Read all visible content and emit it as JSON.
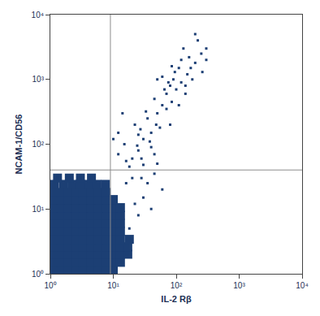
{
  "chart_data": {
    "type": "scatter",
    "xlabel": "IL-2 Rβ",
    "ylabel": "NCAM-1/CD56",
    "log": true,
    "color": "#1c3f74",
    "marker": "square",
    "xlim": [
      1,
      10000
    ],
    "ylim": [
      1,
      10000
    ],
    "xticks": [
      {
        "value": 1,
        "label": "10⁰"
      },
      {
        "value": 10,
        "label": "10¹"
      },
      {
        "value": 100,
        "label": "10²"
      },
      {
        "value": 1000,
        "label": "10³"
      },
      {
        "value": 10000,
        "label": "10⁴"
      }
    ],
    "yticks": [
      {
        "value": 1,
        "label": "10⁰"
      },
      {
        "value": 10,
        "label": "10¹"
      },
      {
        "value": 100,
        "label": "10²"
      },
      {
        "value": 1000,
        "label": "10³"
      },
      {
        "value": 10000,
        "label": "10⁴"
      }
    ],
    "gates": {
      "x": 9,
      "y": 40
    },
    "series": [
      {
        "x": [
          1.1,
          1.45,
          1.9,
          2.5,
          3.3,
          4.4,
          5.8,
          7.7,
          10,
          1.1,
          1.45,
          1.9,
          2.5,
          3.3,
          4.4,
          5.8,
          7.7,
          10,
          13,
          1.1,
          1.45,
          1.9,
          2.5,
          3.3,
          4.4,
          5.8,
          7.7,
          10,
          13,
          17,
          1.1,
          1.45,
          1.9,
          2.5,
          3.3,
          4.4,
          5.8,
          7.7,
          10,
          13,
          17,
          1.1,
          1.45,
          1.9,
          2.5,
          3.3,
          4.4,
          5.8,
          7.7,
          10,
          13,
          18,
          1.1,
          1.45,
          1.9,
          2.5,
          3.3,
          4.4,
          5.8,
          7.7,
          10,
          13,
          1.1,
          1.45,
          1.9,
          2.5,
          3.3,
          4.4,
          5.8,
          7.7,
          10,
          13,
          1.1,
          1.45,
          1.9,
          2.5,
          3.3,
          4.4,
          5.8,
          7.7,
          10,
          13,
          1.1,
          1.45,
          1.9,
          2.5,
          3.3,
          4.4,
          5.8,
          7.7,
          10,
          13,
          1.1,
          1.45,
          1.9,
          2.5,
          3.3,
          4.4,
          5.8,
          7.7,
          10,
          1.1,
          1.45,
          1.9,
          2.5,
          3.3,
          4.4,
          5.8,
          7.7,
          1.15,
          1.6,
          2.2,
          3,
          4,
          5.5,
          7.5,
          1.3,
          2,
          3,
          4.5
        ],
        "y": [
          1.15,
          1.15,
          1.15,
          1.15,
          1.15,
          1.15,
          1.15,
          1.15,
          1.15,
          1.5,
          1.5,
          1.5,
          1.5,
          1.5,
          1.5,
          1.5,
          1.5,
          1.5,
          1.5,
          2,
          2,
          2,
          2,
          2,
          2,
          2,
          2,
          2,
          2,
          2,
          2.6,
          2.6,
          2.6,
          2.6,
          2.6,
          2.6,
          2.6,
          2.6,
          2.6,
          2.6,
          2.6,
          3.4,
          3.4,
          3.4,
          3.4,
          3.4,
          3.4,
          3.4,
          3.4,
          3.4,
          3.4,
          3.4,
          4.5,
          4.5,
          4.5,
          4.5,
          4.5,
          4.5,
          4.5,
          4.5,
          4.5,
          4.5,
          6,
          6,
          6,
          6,
          6,
          6,
          6,
          6,
          6,
          6,
          8,
          8,
          8,
          8,
          8,
          8,
          8,
          8,
          8,
          8,
          10.5,
          10.5,
          10.5,
          10.5,
          10.5,
          10.5,
          10.5,
          10.5,
          10.5,
          10.5,
          14,
          14,
          14,
          14,
          14,
          14,
          14,
          14,
          14,
          18,
          18,
          18,
          18,
          18,
          18,
          18,
          18,
          24,
          24,
          24,
          24,
          24,
          24,
          24,
          30,
          30,
          30,
          30
        ]
      },
      {
        "x": [
          20,
          25,
          15,
          30,
          40,
          22,
          35,
          50,
          60,
          45,
          70,
          80,
          100,
          120,
          90,
          150,
          60,
          110,
          200,
          180,
          250,
          140,
          300,
          130,
          220,
          70,
          40,
          55,
          28,
          18,
          12,
          10,
          12,
          25,
          33,
          85,
          95,
          160,
          75,
          65,
          48,
          38,
          27,
          16,
          14,
          200,
          110,
          140,
          85,
          170,
          260,
          50,
          120,
          300,
          80,
          24,
          30,
          45,
          20,
          35,
          45,
          60,
          30,
          40,
          25,
          18,
          22,
          28,
          16,
          50
        ],
        "y": [
          60,
          80,
          100,
          120,
          150,
          200,
          250,
          300,
          400,
          500,
          600,
          800,
          700,
          900,
          1000,
          1200,
          1100,
          1500,
          1800,
          1000,
          2500,
          600,
          2000,
          3000,
          4000,
          350,
          90,
          180,
          60,
          45,
          70,
          120,
          150,
          140,
          320,
          450,
          1300,
          2200,
          900,
          700,
          200,
          110,
          170,
          55,
          300,
          5000,
          400,
          800,
          1600,
          1500,
          1300,
          1000,
          2000,
          3000,
          200,
          95,
          48,
          70,
          30,
          25,
          35,
          20,
          15,
          10,
          8,
          5,
          12,
          30,
          25,
          50
        ]
      }
    ]
  }
}
